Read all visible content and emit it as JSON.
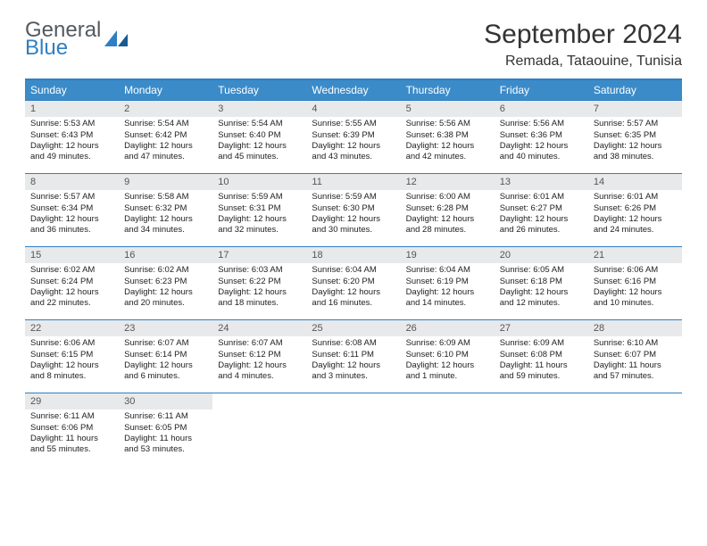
{
  "logo": {
    "text1": "General",
    "text2": "Blue"
  },
  "header": {
    "month_title": "September 2024",
    "location": "Remada, Tataouine, Tunisia"
  },
  "colors": {
    "accent": "#3b8bc9",
    "rule": "#2f7fc2",
    "daynum_bg": "#e8e9ea"
  },
  "dow": [
    "Sunday",
    "Monday",
    "Tuesday",
    "Wednesday",
    "Thursday",
    "Friday",
    "Saturday"
  ],
  "days": [
    {
      "n": "1",
      "sr": "Sunrise: 5:53 AM",
      "ss": "Sunset: 6:43 PM",
      "d1": "Daylight: 12 hours",
      "d2": "and 49 minutes."
    },
    {
      "n": "2",
      "sr": "Sunrise: 5:54 AM",
      "ss": "Sunset: 6:42 PM",
      "d1": "Daylight: 12 hours",
      "d2": "and 47 minutes."
    },
    {
      "n": "3",
      "sr": "Sunrise: 5:54 AM",
      "ss": "Sunset: 6:40 PM",
      "d1": "Daylight: 12 hours",
      "d2": "and 45 minutes."
    },
    {
      "n": "4",
      "sr": "Sunrise: 5:55 AM",
      "ss": "Sunset: 6:39 PM",
      "d1": "Daylight: 12 hours",
      "d2": "and 43 minutes."
    },
    {
      "n": "5",
      "sr": "Sunrise: 5:56 AM",
      "ss": "Sunset: 6:38 PM",
      "d1": "Daylight: 12 hours",
      "d2": "and 42 minutes."
    },
    {
      "n": "6",
      "sr": "Sunrise: 5:56 AM",
      "ss": "Sunset: 6:36 PM",
      "d1": "Daylight: 12 hours",
      "d2": "and 40 minutes."
    },
    {
      "n": "7",
      "sr": "Sunrise: 5:57 AM",
      "ss": "Sunset: 6:35 PM",
      "d1": "Daylight: 12 hours",
      "d2": "and 38 minutes."
    },
    {
      "n": "8",
      "sr": "Sunrise: 5:57 AM",
      "ss": "Sunset: 6:34 PM",
      "d1": "Daylight: 12 hours",
      "d2": "and 36 minutes."
    },
    {
      "n": "9",
      "sr": "Sunrise: 5:58 AM",
      "ss": "Sunset: 6:32 PM",
      "d1": "Daylight: 12 hours",
      "d2": "and 34 minutes."
    },
    {
      "n": "10",
      "sr": "Sunrise: 5:59 AM",
      "ss": "Sunset: 6:31 PM",
      "d1": "Daylight: 12 hours",
      "d2": "and 32 minutes."
    },
    {
      "n": "11",
      "sr": "Sunrise: 5:59 AM",
      "ss": "Sunset: 6:30 PM",
      "d1": "Daylight: 12 hours",
      "d2": "and 30 minutes."
    },
    {
      "n": "12",
      "sr": "Sunrise: 6:00 AM",
      "ss": "Sunset: 6:28 PM",
      "d1": "Daylight: 12 hours",
      "d2": "and 28 minutes."
    },
    {
      "n": "13",
      "sr": "Sunrise: 6:01 AM",
      "ss": "Sunset: 6:27 PM",
      "d1": "Daylight: 12 hours",
      "d2": "and 26 minutes."
    },
    {
      "n": "14",
      "sr": "Sunrise: 6:01 AM",
      "ss": "Sunset: 6:26 PM",
      "d1": "Daylight: 12 hours",
      "d2": "and 24 minutes."
    },
    {
      "n": "15",
      "sr": "Sunrise: 6:02 AM",
      "ss": "Sunset: 6:24 PM",
      "d1": "Daylight: 12 hours",
      "d2": "and 22 minutes."
    },
    {
      "n": "16",
      "sr": "Sunrise: 6:02 AM",
      "ss": "Sunset: 6:23 PM",
      "d1": "Daylight: 12 hours",
      "d2": "and 20 minutes."
    },
    {
      "n": "17",
      "sr": "Sunrise: 6:03 AM",
      "ss": "Sunset: 6:22 PM",
      "d1": "Daylight: 12 hours",
      "d2": "and 18 minutes."
    },
    {
      "n": "18",
      "sr": "Sunrise: 6:04 AM",
      "ss": "Sunset: 6:20 PM",
      "d1": "Daylight: 12 hours",
      "d2": "and 16 minutes."
    },
    {
      "n": "19",
      "sr": "Sunrise: 6:04 AM",
      "ss": "Sunset: 6:19 PM",
      "d1": "Daylight: 12 hours",
      "d2": "and 14 minutes."
    },
    {
      "n": "20",
      "sr": "Sunrise: 6:05 AM",
      "ss": "Sunset: 6:18 PM",
      "d1": "Daylight: 12 hours",
      "d2": "and 12 minutes."
    },
    {
      "n": "21",
      "sr": "Sunrise: 6:06 AM",
      "ss": "Sunset: 6:16 PM",
      "d1": "Daylight: 12 hours",
      "d2": "and 10 minutes."
    },
    {
      "n": "22",
      "sr": "Sunrise: 6:06 AM",
      "ss": "Sunset: 6:15 PM",
      "d1": "Daylight: 12 hours",
      "d2": "and 8 minutes."
    },
    {
      "n": "23",
      "sr": "Sunrise: 6:07 AM",
      "ss": "Sunset: 6:14 PM",
      "d1": "Daylight: 12 hours",
      "d2": "and 6 minutes."
    },
    {
      "n": "24",
      "sr": "Sunrise: 6:07 AM",
      "ss": "Sunset: 6:12 PM",
      "d1": "Daylight: 12 hours",
      "d2": "and 4 minutes."
    },
    {
      "n": "25",
      "sr": "Sunrise: 6:08 AM",
      "ss": "Sunset: 6:11 PM",
      "d1": "Daylight: 12 hours",
      "d2": "and 3 minutes."
    },
    {
      "n": "26",
      "sr": "Sunrise: 6:09 AM",
      "ss": "Sunset: 6:10 PM",
      "d1": "Daylight: 12 hours",
      "d2": "and 1 minute."
    },
    {
      "n": "27",
      "sr": "Sunrise: 6:09 AM",
      "ss": "Sunset: 6:08 PM",
      "d1": "Daylight: 11 hours",
      "d2": "and 59 minutes."
    },
    {
      "n": "28",
      "sr": "Sunrise: 6:10 AM",
      "ss": "Sunset: 6:07 PM",
      "d1": "Daylight: 11 hours",
      "d2": "and 57 minutes."
    },
    {
      "n": "29",
      "sr": "Sunrise: 6:11 AM",
      "ss": "Sunset: 6:06 PM",
      "d1": "Daylight: 11 hours",
      "d2": "and 55 minutes."
    },
    {
      "n": "30",
      "sr": "Sunrise: 6:11 AM",
      "ss": "Sunset: 6:05 PM",
      "d1": "Daylight: 11 hours",
      "d2": "and 53 minutes."
    }
  ]
}
